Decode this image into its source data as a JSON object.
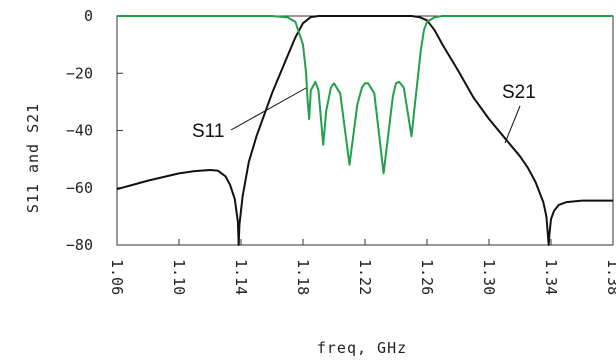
{
  "chart_data": {
    "type": "line",
    "title": "",
    "xlabel": "freq, GHz",
    "ylabel": "S11 and S21",
    "xlim": [
      1.06,
      1.38
    ],
    "ylim": [
      -80,
      0
    ],
    "x_ticks": [
      "1.06",
      "1.10",
      "1.14",
      "1.18",
      "1.22",
      "1.26",
      "1.30",
      "1.34",
      "1.38"
    ],
    "y_ticks": [
      "0",
      "−20",
      "−40",
      "−60",
      "−80"
    ],
    "grid": false,
    "legend": "none",
    "series": [
      {
        "name": "S21",
        "color": "#111111",
        "x": [
          1.06,
          1.08,
          1.1,
          1.11,
          1.12,
          1.125,
          1.13,
          1.133,
          1.136,
          1.138,
          1.1385,
          1.139,
          1.141,
          1.145,
          1.15,
          1.16,
          1.17,
          1.175,
          1.18,
          1.185,
          1.19,
          1.2,
          1.22,
          1.24,
          1.25,
          1.255,
          1.26,
          1.265,
          1.27,
          1.28,
          1.29,
          1.3,
          1.31,
          1.32,
          1.325,
          1.33,
          1.335,
          1.337,
          1.3385,
          1.339,
          1.34,
          1.342,
          1.345,
          1.35,
          1.36,
          1.37,
          1.38
        ],
        "y": [
          -60.5,
          -57.5,
          -55.0,
          -54.2,
          -53.8,
          -54.0,
          -56.0,
          -59.0,
          -64.0,
          -72.0,
          -80.0,
          -73.0,
          -63.0,
          -51.0,
          -42.0,
          -27.0,
          -14.0,
          -7.5,
          -2.5,
          -0.4,
          0,
          0,
          0,
          0,
          0,
          -0.4,
          -1.5,
          -5.0,
          -10.0,
          -19.0,
          -28.5,
          -36.0,
          -42.5,
          -49.0,
          -53.0,
          -58.0,
          -65.0,
          -70.0,
          -80.0,
          -76.0,
          -71.0,
          -68.0,
          -66.0,
          -65.0,
          -64.5,
          -64.5,
          -64.5
        ]
      },
      {
        "name": "S11",
        "color": "#22a04b",
        "x": [
          1.06,
          1.16,
          1.17,
          1.175,
          1.18,
          1.182,
          1.183,
          1.184,
          1.185,
          1.188,
          1.19,
          1.193,
          1.195,
          1.198,
          1.2,
          1.204,
          1.21,
          1.215,
          1.218,
          1.22,
          1.222,
          1.226,
          1.232,
          1.238,
          1.24,
          1.242,
          1.245,
          1.25,
          1.253,
          1.254,
          1.256,
          1.258,
          1.26,
          1.265,
          1.27,
          1.28,
          1.38
        ],
        "y": [
          0,
          0,
          -0.5,
          -2.0,
          -10.0,
          -20.0,
          -30.0,
          -36.0,
          -26.0,
          -23.0,
          -26.0,
          -45.0,
          -33.0,
          -25.0,
          -23.5,
          -27.0,
          -52.0,
          -31.0,
          -25.0,
          -23.5,
          -23.5,
          -27.0,
          -55.0,
          -28.0,
          -23.5,
          -23.0,
          -25.0,
          -42.0,
          -27.0,
          -22.0,
          -12.0,
          -5.0,
          -2.0,
          -0.5,
          0,
          0,
          0
        ]
      }
    ],
    "annotations": [
      {
        "text": "S11",
        "series": "S11"
      },
      {
        "text": "S21",
        "series": "S21"
      }
    ]
  }
}
